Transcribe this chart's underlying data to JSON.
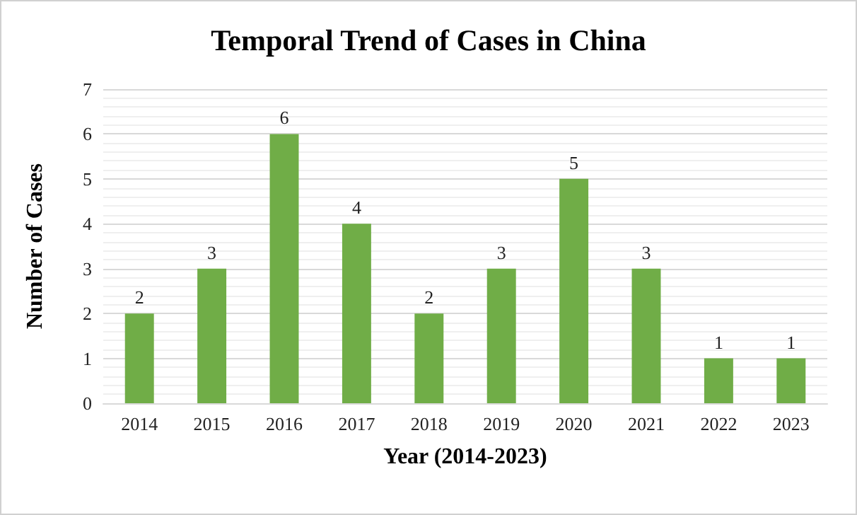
{
  "chart_data": {
    "type": "bar",
    "title": "Temporal Trend of Cases in China",
    "xlabel": "Year (2014-2023)",
    "ylabel": "Number of Cases",
    "categories": [
      "2014",
      "2015",
      "2016",
      "2017",
      "2018",
      "2019",
      "2020",
      "2021",
      "2022",
      "2023"
    ],
    "values": [
      2,
      3,
      6,
      4,
      2,
      3,
      5,
      3,
      1,
      1
    ],
    "color": "#70ad47",
    "ylim": [
      0,
      7
    ],
    "yticks": [
      0,
      1,
      2,
      3,
      4,
      5,
      6,
      7
    ],
    "grid": "y",
    "data_labels": true
  }
}
